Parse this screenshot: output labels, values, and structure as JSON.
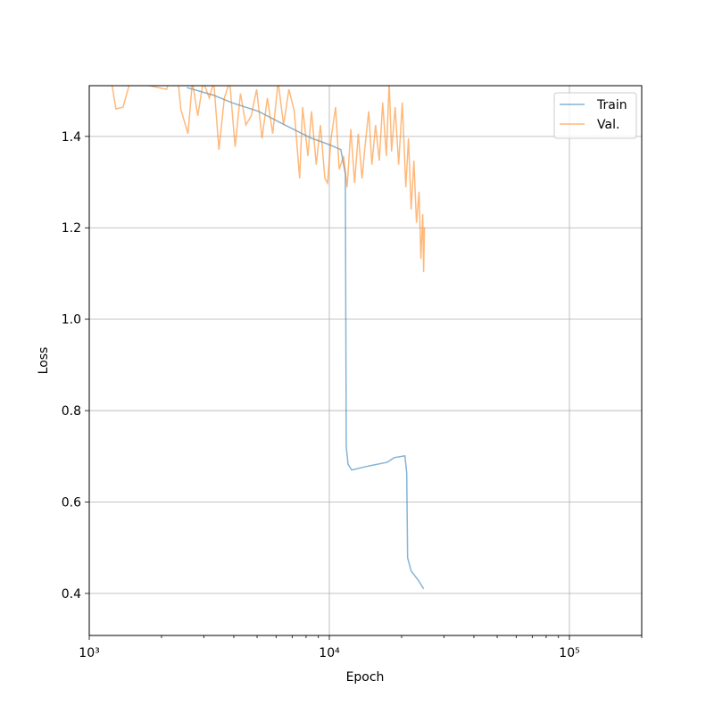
{
  "chart_data": {
    "type": "line",
    "x_label": "Epoch",
    "y_label": "Loss",
    "xscale": "log",
    "grid": true,
    "legend": "upper right",
    "xlim": [
      1000,
      200000
    ],
    "ylim": [
      0.308,
      1.511
    ],
    "xticks": [
      {
        "value": 1000,
        "label": "10³"
      },
      {
        "value": 10000,
        "label": "10⁴"
      },
      {
        "value": 100000,
        "label": "10⁵"
      }
    ],
    "xminorticks": [
      2000,
      3000,
      4000,
      5000,
      6000,
      7000,
      8000,
      9000,
      20000,
      30000,
      40000,
      50000,
      60000,
      70000,
      80000,
      90000,
      200000
    ],
    "yticks": [
      0.4,
      0.6,
      0.8,
      {
        "value": 1,
        "label": "1.0"
      },
      1.2,
      1.4
    ],
    "series": [
      {
        "name": "Train",
        "color": "#1f77b4",
        "x": [
          2550,
          3300,
          3915,
          5060,
          6530,
          8430,
          10000,
          11170,
          11660,
          11760,
          11960,
          12390,
          14070,
          15310,
          17410,
          18620,
          20640,
          21000,
          21180,
          21920,
          23460,
          24700
        ],
        "values": [
          1.507,
          1.49,
          1.474,
          1.455,
          1.425,
          1.396,
          1.382,
          1.371,
          1.318,
          0.722,
          0.683,
          0.67,
          0.677,
          0.681,
          0.687,
          0.697,
          0.701,
          0.664,
          0.478,
          0.449,
          0.429,
          0.41
        ]
      },
      {
        "name": "Val.",
        "color": "#ff7f0e",
        "x": [
          1238,
          1291,
          1383,
          1480,
          2099,
          2154,
          2346,
          2407,
          2578,
          2688,
          2832,
          2982,
          3163,
          3300,
          3468,
          3653,
          3846,
          4050,
          4265,
          4491,
          4730,
          4980,
          5245,
          5520,
          5810,
          6120,
          6445,
          6785,
          7145,
          7520,
          7740,
          8140,
          8430,
          8820,
          9180,
          9580,
          9830,
          10170,
          10620,
          10990,
          11460,
          11860,
          12290,
          12740,
          13200,
          13680,
          14070,
          14590,
          15040,
          15580,
          16150,
          16680,
          17280,
          17750,
          18160,
          18800,
          19440,
          20130,
          20820,
          21360,
          21920,
          22500,
          23060,
          23650,
          24060,
          24490,
          24700,
          24900
        ],
        "values": [
          1.52,
          1.46,
          1.464,
          1.52,
          1.503,
          1.52,
          1.52,
          1.459,
          1.406,
          1.52,
          1.445,
          1.52,
          1.484,
          1.52,
          1.371,
          1.484,
          1.52,
          1.377,
          1.494,
          1.425,
          1.445,
          1.503,
          1.396,
          1.484,
          1.406,
          1.52,
          1.425,
          1.503,
          1.455,
          1.308,
          1.464,
          1.357,
          1.455,
          1.338,
          1.425,
          1.308,
          1.298,
          1.396,
          1.464,
          1.328,
          1.357,
          1.289,
          1.416,
          1.298,
          1.406,
          1.308,
          1.377,
          1.455,
          1.338,
          1.425,
          1.347,
          1.474,
          1.357,
          1.52,
          1.367,
          1.464,
          1.338,
          1.474,
          1.289,
          1.396,
          1.24,
          1.347,
          1.211,
          1.279,
          1.132,
          1.23,
          1.103,
          1.201
        ]
      }
    ]
  }
}
